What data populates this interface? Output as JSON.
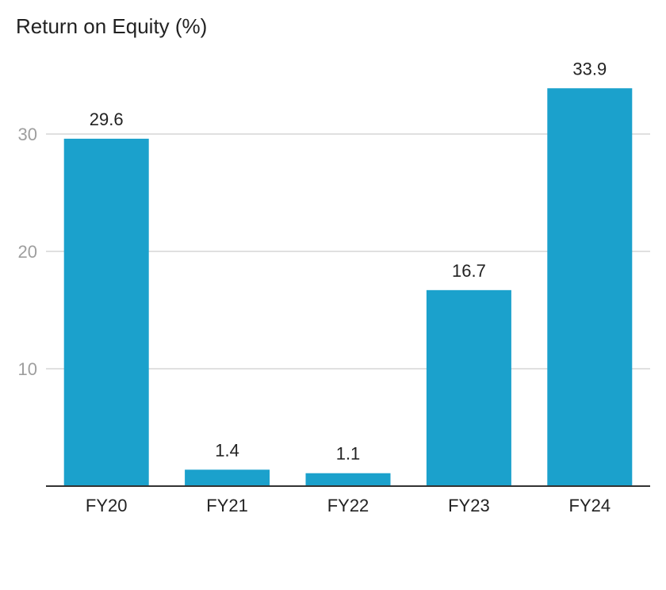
{
  "chart_data": {
    "type": "bar",
    "title": "Return on Equity (%)",
    "xlabel": "",
    "ylabel": "",
    "categories": [
      "FY20",
      "FY21",
      "FY22",
      "FY23",
      "FY24"
    ],
    "values": [
      29.6,
      1.4,
      1.1,
      16.7,
      33.9
    ],
    "data_labels": [
      "29.6",
      "1.4",
      "1.1",
      "16.7",
      "33.9"
    ],
    "ylim": [
      0,
      36
    ],
    "yticks": [
      10,
      20,
      30
    ],
    "ytick_labels": [
      "10",
      "20",
      "30"
    ],
    "grid": true,
    "legend": "none",
    "colors": {
      "bar": "#1ba1cc",
      "grid": "#e0e0e0",
      "axis": "#333333"
    }
  }
}
